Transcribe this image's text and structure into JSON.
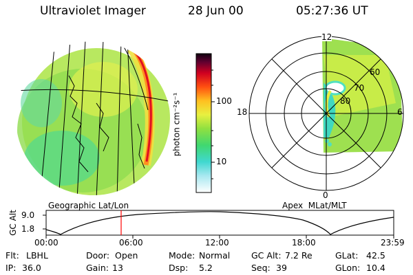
{
  "header": {
    "instrument": "Ultraviolet Imager",
    "date": "28 Jun 00",
    "time": "05:27:36 UT"
  },
  "left_panel": {
    "caption": "Geographic Lat/Lon"
  },
  "right_panel": {
    "caption": "Apex  MLat/MLT",
    "mlt_labels": {
      "top": "12",
      "left": "18",
      "right": "6",
      "bottom": "0"
    },
    "lat_labels": [
      "60",
      "70",
      "80"
    ]
  },
  "colorbar": {
    "unit_label": "photon cm⁻²s⁻¹",
    "tick_labels": [
      "100",
      "10"
    ],
    "scale": "log"
  },
  "altitude_plot": {
    "ylabel": "GC Alt",
    "y_ticks": [
      "9.0",
      "1.8"
    ],
    "x_ticks": [
      "00:00",
      "06:00",
      "12:00",
      "18:00",
      "23:59"
    ],
    "current_time_marker": "05:27"
  },
  "info": [
    {
      "label": "Flt:",
      "value": "LBHL"
    },
    {
      "label": "Door:",
      "value": "Open"
    },
    {
      "label": "Mode:",
      "value": "Normal"
    },
    {
      "label": "GC Alt:",
      "value": "7.2 Re"
    },
    {
      "label": "GLat:",
      "value": "42.5"
    },
    {
      "label": "IP:",
      "value": "36.0"
    },
    {
      "label": "Gain:",
      "value": "13"
    },
    {
      "label": "Dsp:",
      "value": "5.2"
    },
    {
      "label": "Seq:",
      "value": "39"
    },
    {
      "label": "GLon:",
      "value": "10.4"
    }
  ],
  "colors": {
    "scale": [
      "#ffffff",
      "#50e0d0",
      "#40e070",
      "#a0e040",
      "#e8f040",
      "#ffb020",
      "#ff2020",
      "#b00030",
      "#200020"
    ]
  }
}
